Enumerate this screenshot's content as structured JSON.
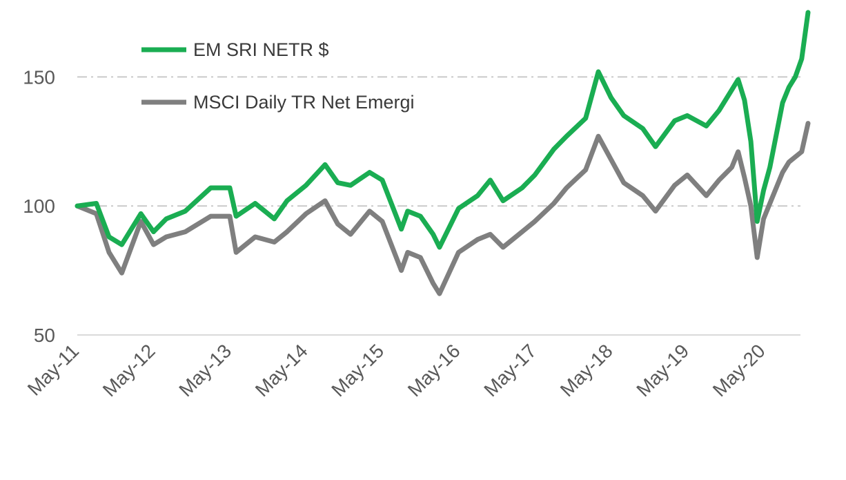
{
  "chart_data": {
    "type": "line",
    "title": "",
    "xlabel": "",
    "ylabel": "",
    "x_tick_labels": [
      "May-11",
      "May-12",
      "May-13",
      "May-14",
      "May-15",
      "May-16",
      "May-17",
      "May-18",
      "May-19",
      "May-20"
    ],
    "y_tick_labels": [
      "50",
      "100",
      "150"
    ],
    "ylim": [
      50,
      175
    ],
    "y_gridlines": [
      100,
      150
    ],
    "grid_style": "dash-dot",
    "legend_position": "top-left",
    "x": [
      "2011-05",
      "2011-08",
      "2011-10",
      "2011-12",
      "2012-03",
      "2012-05",
      "2012-07",
      "2012-10",
      "2013-02",
      "2013-05",
      "2013-06",
      "2013-09",
      "2013-12",
      "2014-02",
      "2014-05",
      "2014-08",
      "2014-10",
      "2014-12",
      "2015-03",
      "2015-05",
      "2015-08",
      "2015-09",
      "2015-11",
      "2016-01",
      "2016-02",
      "2016-05",
      "2016-08",
      "2016-10",
      "2016-12",
      "2017-03",
      "2017-05",
      "2017-08",
      "2017-10",
      "2018-01",
      "2018-03",
      "2018-05",
      "2018-07",
      "2018-10",
      "2018-12",
      "2019-03",
      "2019-05",
      "2019-08",
      "2019-10",
      "2019-12",
      "2020-01",
      "2020-02",
      "2020-03",
      "2020-04",
      "2020-05",
      "2020-06",
      "2020-08",
      "2020-09",
      "2020-10",
      "2020-11",
      "2020-12"
    ],
    "series": [
      {
        "name": "EM SRI NETR $",
        "color": "#1aad52",
        "values": [
          100,
          101,
          88,
          85,
          97,
          90,
          95,
          98,
          107,
          107,
          96,
          101,
          95,
          102,
          108,
          116,
          109,
          108,
          113,
          110,
          91,
          98,
          96,
          89,
          84,
          99,
          104,
          110,
          102,
          107,
          112,
          122,
          127,
          134,
          152,
          142,
          135,
          130,
          123,
          133,
          135,
          131,
          137,
          145,
          149,
          141,
          125,
          94,
          106,
          115,
          140,
          146,
          150,
          157,
          175
        ]
      },
      {
        "name": "MSCI Daily TR Net Emergi",
        "color": "#7f7f7f",
        "values": [
          100,
          97,
          82,
          74,
          94,
          85,
          88,
          90,
          96,
          96,
          82,
          88,
          86,
          90,
          97,
          102,
          93,
          89,
          98,
          94,
          75,
          82,
          80,
          70,
          66,
          82,
          87,
          89,
          84,
          90,
          94,
          101,
          107,
          114,
          127,
          118,
          109,
          104,
          98,
          108,
          112,
          104,
          110,
          115,
          121,
          111,
          100,
          80,
          95,
          101,
          113,
          117,
          119,
          121,
          132
        ]
      }
    ]
  }
}
